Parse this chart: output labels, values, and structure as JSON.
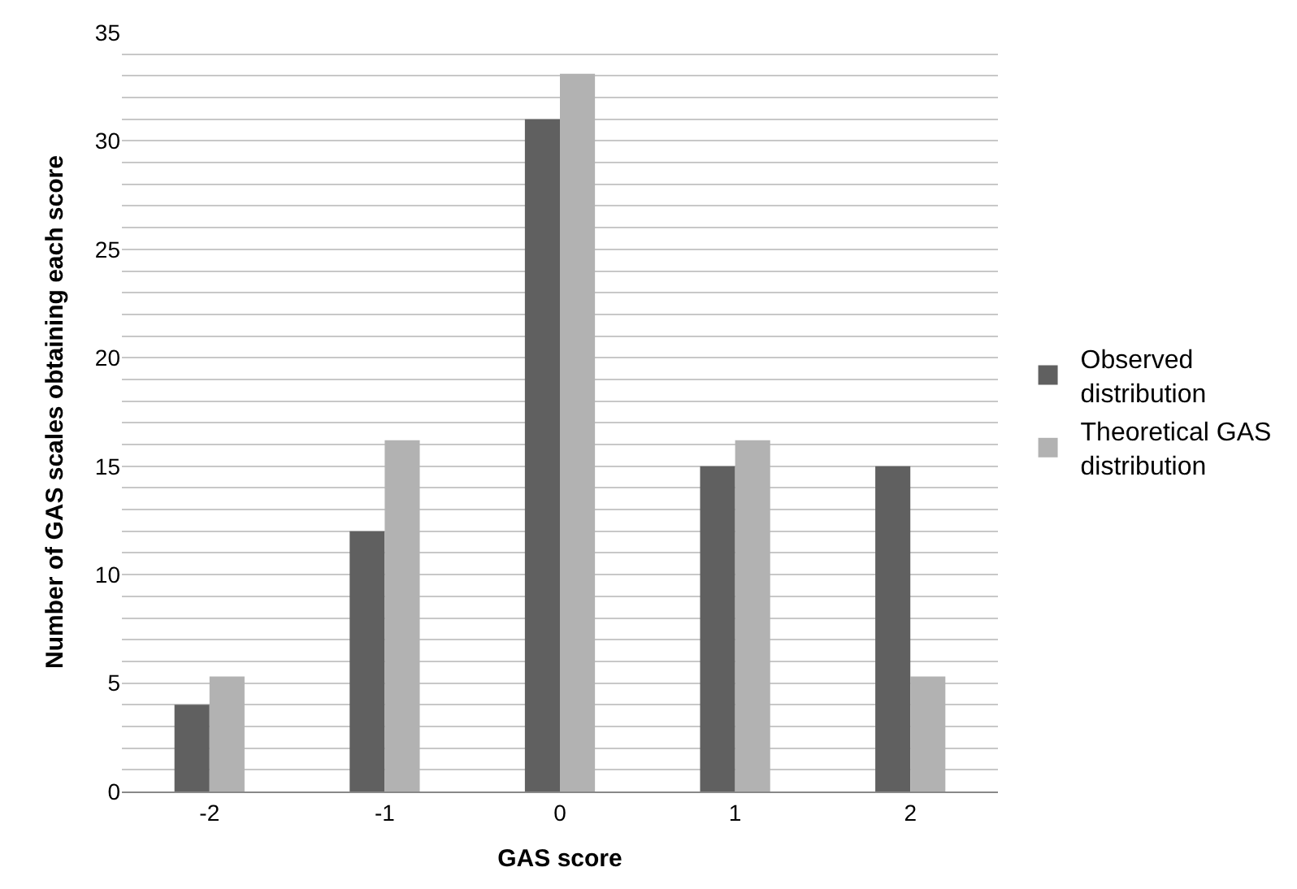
{
  "chart_data": {
    "type": "bar",
    "xlabel": "GAS score",
    "ylabel": "Number of GAS scales obtaining each score",
    "categories": [
      "-2",
      "-1",
      "0",
      "1",
      "2"
    ],
    "series": [
      {
        "name": "Observed distribution",
        "color": "#606060",
        "values": [
          4,
          12,
          31,
          15,
          15
        ]
      },
      {
        "name": "Theoretical GAS distribution",
        "color": "#b2b2b2",
        "values": [
          5.3,
          16.2,
          33.1,
          16.2,
          5.3
        ]
      }
    ],
    "ylim": [
      0,
      35
    ],
    "yticks": [
      0,
      {
        "value": 1,
        "label": null
      },
      {
        "value": 2,
        "label": null
      },
      {
        "value": 3,
        "label": null
      },
      {
        "value": 4,
        "label": null
      },
      5,
      {
        "value": 6,
        "label": null
      },
      {
        "value": 7,
        "label": null
      },
      {
        "value": 8,
        "label": null
      },
      {
        "value": 9,
        "label": null
      },
      10,
      {
        "value": 11,
        "label": null
      },
      {
        "value": 12,
        "label": null
      },
      {
        "value": 13,
        "label": null
      },
      {
        "value": 14,
        "label": null
      },
      15,
      {
        "value": 16,
        "label": null
      },
      {
        "value": 17,
        "label": null
      },
      {
        "value": 18,
        "label": null
      },
      {
        "value": 19,
        "label": null
      },
      20,
      {
        "value": 21,
        "label": null
      },
      {
        "value": 22,
        "label": null
      },
      {
        "value": 23,
        "label": null
      },
      {
        "value": 24,
        "label": null
      },
      25,
      {
        "value": 26,
        "label": null
      },
      {
        "value": 27,
        "label": null
      },
      {
        "value": 28,
        "label": null
      },
      {
        "value": 29,
        "label": null
      },
      30,
      {
        "value": 31,
        "label": null
      },
      {
        "value": 32,
        "label": null
      },
      {
        "value": 33,
        "label": null
      },
      {
        "value": 34,
        "label": null
      },
      35
    ],
    "grid": "y",
    "legend": "right"
  }
}
